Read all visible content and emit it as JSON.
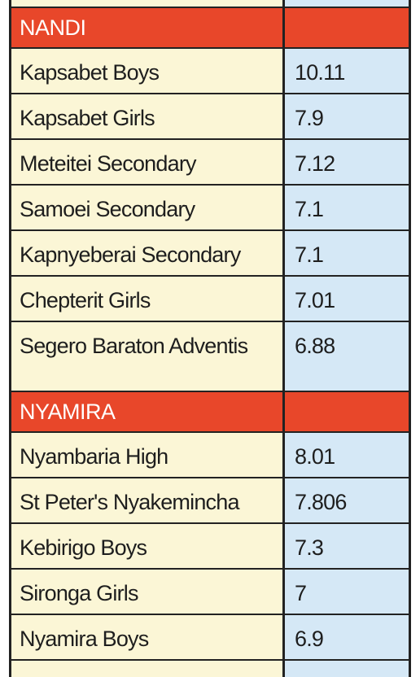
{
  "sections": [
    {
      "region": "NANDI",
      "schools": [
        {
          "name": "Kapsabet Boys",
          "score": "10.11"
        },
        {
          "name": "Kapsabet Girls",
          "score": "7.9"
        },
        {
          "name": "Meteitei Secondary",
          "score": "7.12"
        },
        {
          "name": "Samoei Secondary",
          "score": "7.1"
        },
        {
          "name": "Kapnyeberai Secondary",
          "score": "7.1"
        },
        {
          "name": "Chepterit Girls",
          "score": "7.01"
        },
        {
          "name": "Segero Baraton Adventis",
          "score": "6.88"
        }
      ]
    },
    {
      "region": "NYAMIRA",
      "schools": [
        {
          "name": "Nyambaria High",
          "score": "8.01"
        },
        {
          "name": "St Peter's Nyakemincha",
          "score": "7.806"
        },
        {
          "name": "Kebirigo Boys",
          "score": "7.3"
        },
        {
          "name": "Sironga Girls",
          "score": "7"
        },
        {
          "name": "Nyamira Boys",
          "score": "6.9"
        }
      ]
    }
  ],
  "colors": {
    "header_bg": "#e8472a",
    "name_col_bg": "#fbf6d6",
    "score_col_bg": "#d5e8f6",
    "border": "#222222"
  }
}
